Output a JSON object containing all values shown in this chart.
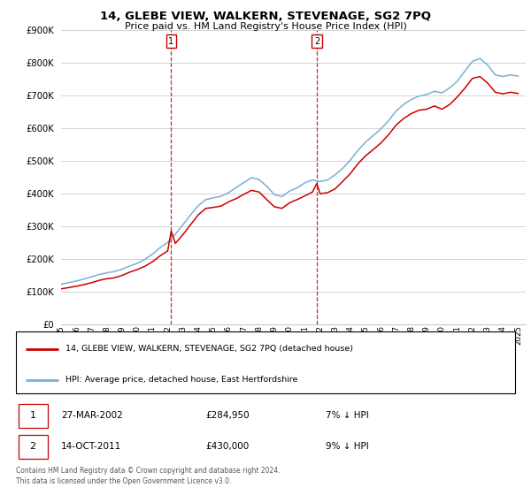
{
  "title": "14, GLEBE VIEW, WALKERN, STEVENAGE, SG2 7PQ",
  "subtitle": "Price paid vs. HM Land Registry's House Price Index (HPI)",
  "legend_line1": "14, GLEBE VIEW, WALKERN, STEVENAGE, SG2 7PQ (detached house)",
  "legend_line2": "HPI: Average price, detached house, East Hertfordshire",
  "transactions": [
    {
      "num": 1,
      "date": "27-MAR-2002",
      "price": "£284,950",
      "pct": "7% ↓ HPI",
      "year": 2002.23
    },
    {
      "num": 2,
      "date": "14-OCT-2011",
      "price": "£430,000",
      "pct": "9% ↓ HPI",
      "year": 2011.79
    }
  ],
  "footer1": "Contains HM Land Registry data © Crown copyright and database right 2024.",
  "footer2": "This data is licensed under the Open Government Licence v3.0.",
  "price_paid_color": "#cc0000",
  "hpi_color": "#7ab0d4",
  "background_color": "#ffffff",
  "grid_color": "#cccccc",
  "ylim": [
    0,
    900000
  ],
  "xlim_start": 1995.0,
  "xlim_end": 2025.5,
  "hpi_data": {
    "years": [
      1995.0,
      1995.5,
      1996.0,
      1996.5,
      1997.0,
      1997.5,
      1998.0,
      1998.5,
      1999.0,
      1999.5,
      2000.0,
      2000.5,
      2001.0,
      2001.5,
      2002.0,
      2002.5,
      2003.0,
      2003.5,
      2004.0,
      2004.5,
      2005.0,
      2005.5,
      2006.0,
      2006.5,
      2007.0,
      2007.5,
      2008.0,
      2008.5,
      2009.0,
      2009.5,
      2010.0,
      2010.5,
      2011.0,
      2011.5,
      2012.0,
      2012.5,
      2013.0,
      2013.5,
      2014.0,
      2014.5,
      2015.0,
      2015.5,
      2016.0,
      2016.5,
      2017.0,
      2017.5,
      2018.0,
      2018.5,
      2019.0,
      2019.5,
      2020.0,
      2020.5,
      2021.0,
      2021.5,
      2022.0,
      2022.5,
      2023.0,
      2023.5,
      2024.0,
      2024.5,
      2025.0
    ],
    "values": [
      122000,
      127000,
      132000,
      138000,
      145000,
      152000,
      157000,
      161000,
      168000,
      178000,
      186000,
      198000,
      214000,
      234000,
      250000,
      275000,
      304000,
      334000,
      362000,
      381000,
      386000,
      391000,
      402000,
      418000,
      433000,
      448000,
      442000,
      422000,
      396000,
      390000,
      407000,
      417000,
      432000,
      441000,
      436000,
      441000,
      457000,
      477000,
      502000,
      532000,
      557000,
      577000,
      597000,
      622000,
      652000,
      672000,
      687000,
      697000,
      702000,
      712000,
      707000,
      722000,
      742000,
      773000,
      803000,
      812000,
      792000,
      762000,
      757000,
      762000,
      758000
    ]
  },
  "price_paid_data": {
    "years": [
      1995.0,
      1995.5,
      1996.0,
      1996.5,
      1997.0,
      1997.5,
      1998.0,
      1998.5,
      1999.0,
      1999.5,
      2000.0,
      2000.5,
      2001.0,
      2001.5,
      2002.0,
      2002.23,
      2002.5,
      2003.0,
      2003.5,
      2004.0,
      2004.5,
      2005.0,
      2005.5,
      2006.0,
      2006.5,
      2007.0,
      2007.5,
      2008.0,
      2008.5,
      2009.0,
      2009.5,
      2010.0,
      2010.5,
      2011.0,
      2011.5,
      2011.79,
      2012.0,
      2012.5,
      2013.0,
      2013.5,
      2014.0,
      2014.5,
      2015.0,
      2015.5,
      2016.0,
      2016.5,
      2017.0,
      2017.5,
      2018.0,
      2018.5,
      2019.0,
      2019.5,
      2020.0,
      2020.5,
      2021.0,
      2021.5,
      2022.0,
      2022.5,
      2023.0,
      2023.5,
      2024.0,
      2024.5,
      2025.0
    ],
    "values": [
      108000,
      112000,
      116000,
      121000,
      127000,
      134000,
      139000,
      142000,
      149000,
      159000,
      167000,
      177000,
      191000,
      209000,
      224000,
      284950,
      247000,
      274000,
      304000,
      334000,
      354000,
      357000,
      361000,
      374000,
      384000,
      397000,
      409000,
      404000,
      381000,
      359000,
      354000,
      371000,
      381000,
      392000,
      404000,
      430000,
      399000,
      402000,
      414000,
      437000,
      461000,
      491000,
      515000,
      534000,
      554000,
      579000,
      609000,
      629000,
      644000,
      654000,
      657000,
      667000,
      657000,
      671000,
      694000,
      721000,
      751000,
      757000,
      737000,
      709000,
      704000,
      709000,
      705000
    ]
  }
}
